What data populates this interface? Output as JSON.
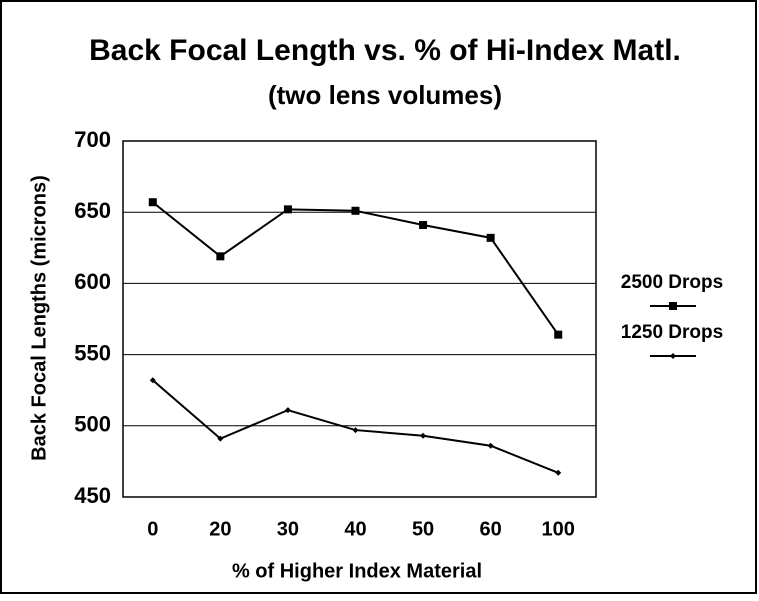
{
  "chart_data": {
    "type": "line",
    "title": "Back Focal Length  vs.  % of Hi-Index Matl.",
    "subtitle": "(two lens volumes)",
    "x_label": "% of Higher Index Material",
    "y_label": "Back Focal Lengths (microns)",
    "categories": [
      "0",
      "20",
      "30",
      "40",
      "50",
      "60",
      "100"
    ],
    "series": [
      {
        "name": "2500 Drops",
        "color": "#000000",
        "marker": "square",
        "values": [
          657,
          619,
          652,
          651,
          641,
          632,
          564
        ]
      },
      {
        "name": "1250 Drops",
        "color": "#000000",
        "marker": "diamond",
        "values": [
          532,
          491,
          511,
          497,
          493,
          486,
          467
        ]
      }
    ],
    "ylim": [
      450,
      700
    ],
    "yticks": [
      450,
      500,
      550,
      600,
      650,
      700
    ],
    "grid": true,
    "legend": "right"
  }
}
